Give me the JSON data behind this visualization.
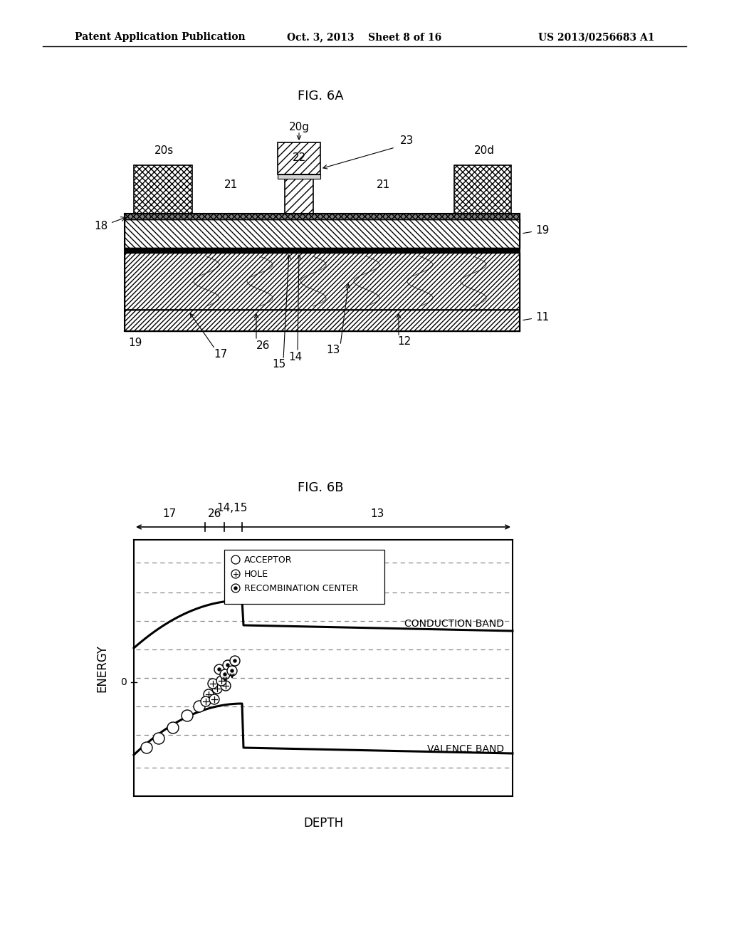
{
  "header_left": "Patent Application Publication",
  "header_center": "Oct. 3, 2013    Sheet 8 of 16",
  "header_right": "US 2013/0256683 A1",
  "fig6a_title": "FIG. 6A",
  "fig6b_title": "FIG. 6B",
  "bg_color": "#ffffff",
  "text_color": "#000000",
  "legend_items": [
    "ACCEPTOR",
    "HOLE",
    "RECOMBINATION CENTER"
  ],
  "legend_symbols": [
    "circle_empty",
    "circle_plus",
    "circle_dot"
  ],
  "ylabel_6b": "ENERGY",
  "xlabel_6b": "DEPTH",
  "conduction_band_label": "CONDUCTION BAND",
  "valence_band_label": "VALENCE BAND"
}
